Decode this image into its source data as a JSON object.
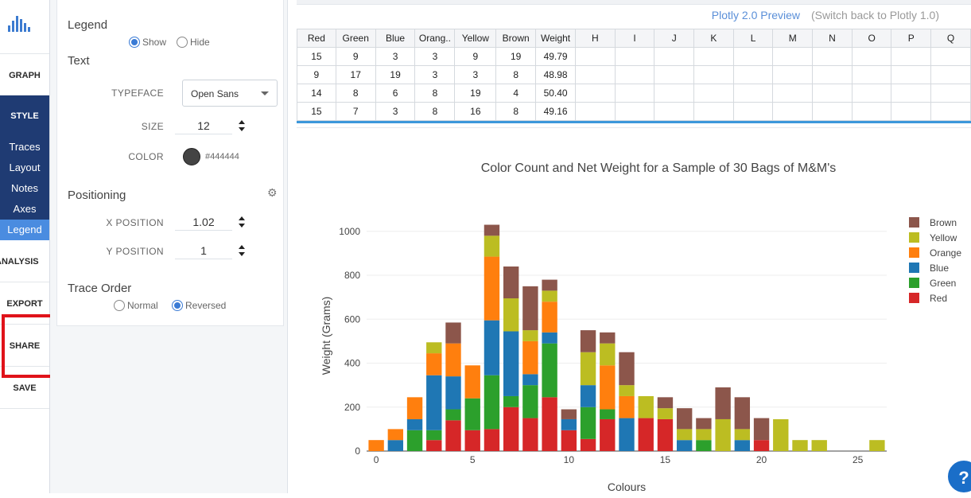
{
  "nav": {
    "items": [
      {
        "label": "GRAPH"
      },
      {
        "label": "STYLE"
      },
      {
        "label": "ANALYSIS"
      },
      {
        "label": "EXPORT"
      },
      {
        "label": "SHARE"
      },
      {
        "label": "SAVE"
      }
    ],
    "style_sub": [
      "Traces",
      "Layout",
      "Notes",
      "Axes",
      "Legend"
    ],
    "active_sub": "Legend"
  },
  "panel": {
    "legend_heading": "Legend",
    "show_label": "Show",
    "hide_label": "Hide",
    "legend_selected": "Show",
    "text_heading": "Text",
    "typeface_label": "TYPEFACE",
    "typeface_value": "Open Sans",
    "size_label": "SIZE",
    "size_value": "12",
    "color_label": "COLOR",
    "color_value": "#444444",
    "positioning_heading": "Positioning",
    "x_label": "X POSITION",
    "x_value": "1.02",
    "y_label": "Y POSITION",
    "y_value": "1",
    "trace_order_heading": "Trace Order",
    "normal_label": "Normal",
    "reversed_label": "Reversed",
    "trace_order_selected": "Reversed"
  },
  "header": {
    "preview_link": "Plotly 2.0 Preview",
    "switch_text": "(Switch back to Plotly 1.0)"
  },
  "grid": {
    "columns": [
      "Red",
      "Green",
      "Blue",
      "Orang..",
      "Yellow",
      "Brown",
      "Weight",
      "H",
      "I",
      "J",
      "K",
      "L",
      "M",
      "N",
      "O",
      "P",
      "Q"
    ],
    "rows": [
      [
        "15",
        "9",
        "3",
        "3",
        "9",
        "19",
        "49.79"
      ],
      [
        "9",
        "17",
        "19",
        "3",
        "3",
        "8",
        "48.98"
      ],
      [
        "14",
        "8",
        "6",
        "8",
        "19",
        "4",
        "50.40"
      ],
      [
        "15",
        "7",
        "3",
        "8",
        "16",
        "8",
        "49.16"
      ]
    ]
  },
  "colors": {
    "Red": "#d62728",
    "Green": "#2ca02c",
    "Blue": "#1f77b4",
    "Orange": "#ff7f0e",
    "Yellow": "#bcbd22",
    "Brown": "#8c564b"
  },
  "chart_data": {
    "type": "bar",
    "barmode": "stack",
    "title": "Color Count and Net Weight for a Sample of 30 Bags of M&M's",
    "xlabel": "Colours",
    "ylabel": "Weight (Grams)",
    "xlim": [
      -0.5,
      26.5
    ],
    "ylim": [
      0,
      1050
    ],
    "xticks": [
      0,
      5,
      10,
      15,
      20,
      25
    ],
    "yticks": [
      0,
      200,
      400,
      600,
      800,
      1000
    ],
    "grid": true,
    "legend_position": "top-right",
    "legend_order": [
      "Brown",
      "Yellow",
      "Orange",
      "Blue",
      "Green",
      "Red"
    ],
    "x": [
      0,
      1,
      2,
      3,
      4,
      5,
      6,
      7,
      8,
      9,
      10,
      11,
      12,
      13,
      14,
      15,
      16,
      17,
      18,
      19,
      20,
      21,
      22,
      23,
      24,
      25,
      26
    ],
    "series": [
      {
        "name": "Red",
        "values": [
          0,
          0,
          0,
          50,
          140,
          95,
          100,
          200,
          150,
          245,
          95,
          55,
          145,
          0,
          150,
          145,
          0,
          0,
          0,
          0,
          50,
          0,
          0,
          0,
          0,
          0,
          0
        ]
      },
      {
        "name": "Green",
        "values": [
          0,
          0,
          95,
          45,
          50,
          145,
          245,
          50,
          150,
          245,
          0,
          145,
          45,
          0,
          0,
          0,
          0,
          50,
          0,
          0,
          0,
          0,
          0,
          0,
          0,
          0,
          0
        ]
      },
      {
        "name": "Blue",
        "values": [
          0,
          50,
          50,
          250,
          150,
          0,
          250,
          295,
          50,
          50,
          50,
          100,
          0,
          150,
          0,
          0,
          50,
          0,
          0,
          50,
          0,
          0,
          0,
          0,
          0,
          0,
          0
        ]
      },
      {
        "name": "Orange",
        "values": [
          50,
          50,
          100,
          100,
          150,
          150,
          290,
          0,
          150,
          140,
          0,
          0,
          200,
          100,
          0,
          0,
          0,
          0,
          0,
          0,
          0,
          0,
          0,
          0,
          0,
          0,
          0
        ]
      },
      {
        "name": "Yellow",
        "values": [
          0,
          0,
          0,
          50,
          0,
          0,
          95,
          150,
          50,
          50,
          0,
          150,
          100,
          50,
          100,
          50,
          50,
          50,
          145,
          50,
          0,
          145,
          50,
          50,
          0,
          0,
          50
        ]
      },
      {
        "name": "Brown",
        "values": [
          0,
          0,
          0,
          0,
          95,
          0,
          50,
          145,
          200,
          50,
          45,
          100,
          50,
          150,
          0,
          50,
          95,
          50,
          145,
          145,
          100,
          0,
          0,
          0,
          0,
          0,
          0
        ]
      }
    ]
  },
  "help": {
    "label": "?"
  }
}
